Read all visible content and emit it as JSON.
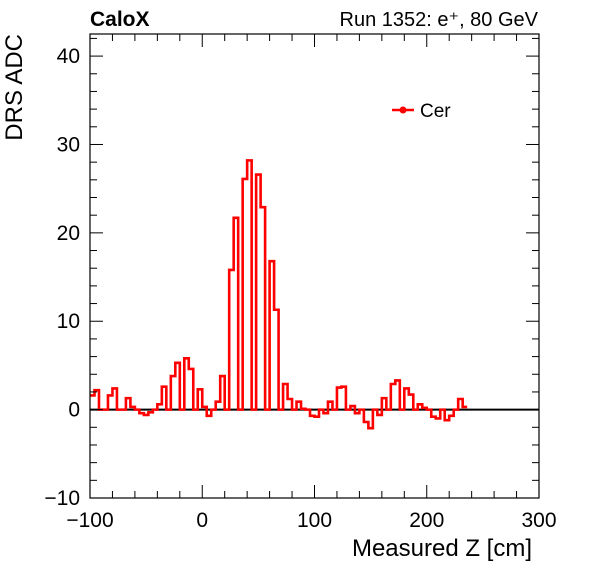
{
  "chart_data": {
    "type": "line",
    "style": "step-histogram",
    "label_left": "CaloX",
    "label_right": "Run 1352: e⁺, 80 GeV",
    "xlabel": "Measured Z [cm]",
    "ylabel": "DRS ADC",
    "xlim": [
      -100,
      300
    ],
    "ylim": [
      -10,
      42.5
    ],
    "xticks": [
      -100,
      0,
      100,
      200,
      300
    ],
    "yticks": [
      -10,
      0,
      10,
      20,
      30,
      40
    ],
    "legend_position": "top-right",
    "grid": false,
    "baseline": 0,
    "series": [
      {
        "name": "Cer",
        "color": "#ff0000",
        "bin_width": 4,
        "x_start": -100,
        "values": [
          1.6,
          2.2,
          0,
          0,
          1.6,
          2.4,
          0,
          0,
          1.3,
          0.3,
          0,
          -0.4,
          -0.6,
          -0.3,
          0,
          0.6,
          2.6,
          0,
          3.8,
          5.3,
          0,
          5.8,
          4.6,
          0,
          2.3,
          0.3,
          -0.7,
          0,
          0.9,
          3.8,
          0,
          15.8,
          21.7,
          0,
          26.1,
          28.2,
          0,
          26.6,
          22.9,
          0,
          16.8,
          11.3,
          0,
          2.9,
          1.2,
          0,
          0.9,
          0.1,
          0,
          -0.7,
          -0.8,
          0,
          -0.4,
          0.9,
          0,
          2.5,
          2.6,
          0,
          0.4,
          -0.4,
          0,
          -1.4,
          -2.1,
          0,
          -0.6,
          1.3,
          0,
          2.9,
          3.3,
          0,
          2.4,
          1.7,
          0,
          0.6,
          0.2,
          0,
          -0.8,
          -1.0,
          0,
          -1.2,
          -0.7,
          0,
          1.2,
          0.3
        ]
      }
    ]
  }
}
